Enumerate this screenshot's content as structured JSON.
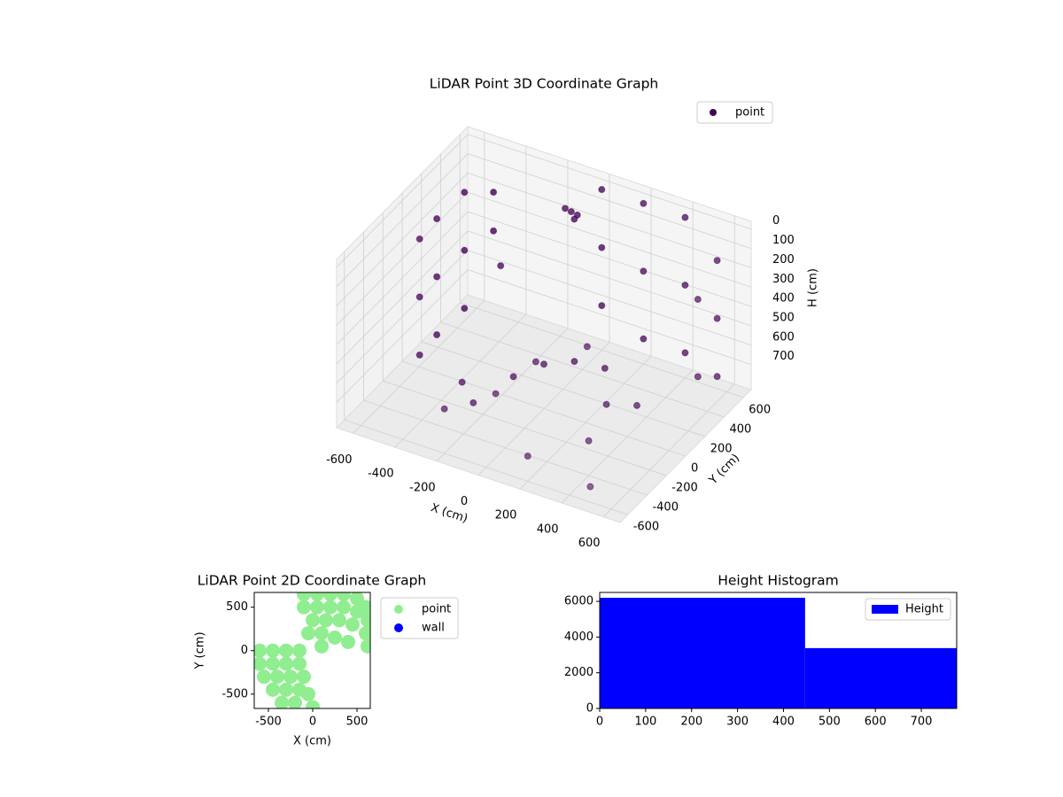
{
  "chart_data": [
    {
      "type": "scatter3d",
      "title": "LiDAR Point 3D Coordinate Graph",
      "xlabel": "X (cm)",
      "ylabel": "Y (cm)",
      "hlabel": "H (cm)",
      "xlim": [
        -680,
        680
      ],
      "ylim": [
        -680,
        680
      ],
      "hlim": [
        -40,
        830
      ],
      "h_inverted": true,
      "xticks": [
        -600,
        -400,
        -200,
        0,
        200,
        400,
        600
      ],
      "yticks": [
        -600,
        -400,
        -200,
        0,
        200,
        400,
        600
      ],
      "hticks": [
        0,
        100,
        200,
        300,
        400,
        500,
        600,
        700
      ],
      "legend": "upper right",
      "series": [
        {
          "name": "point",
          "color": "#440154",
          "x": [
            -550,
            -550,
            -550,
            -560,
            -560,
            -560,
            -520,
            -520,
            -520,
            -450,
            -450,
            0,
            0,
            0,
            200,
            200,
            200,
            400,
            400,
            400,
            600,
            600,
            600,
            600,
            600,
            -300,
            -200,
            -100,
            0,
            100,
            200,
            300,
            400,
            -100,
            -80,
            -120,
            -90,
            -200,
            0,
            200,
            400,
            100,
            -300,
            300,
            500
          ],
          "y": [
            -100,
            -100,
            -100,
            100,
            100,
            100,
            300,
            300,
            300,
            450,
            450,
            600,
            600,
            600,
            600,
            600,
            600,
            600,
            600,
            600,
            500,
            500,
            500,
            300,
            300,
            -200,
            -300,
            -100,
            0,
            100,
            200,
            0,
            100,
            500,
            520,
            480,
            510,
            -600,
            -500,
            -600,
            -400,
            -300,
            200,
            -200,
            -600
          ],
          "h": [
            100,
            400,
            700,
            100,
            400,
            700,
            50,
            350,
            650,
            100,
            300,
            0,
            300,
            600,
            0,
            350,
            700,
            0,
            350,
            700,
            100,
            400,
            700,
            200,
            600,
            700,
            720,
            650,
            600,
            600,
            650,
            700,
            720,
            100,
            120,
            80,
            140,
            600,
            500,
            700,
            650,
            400,
            300,
            300,
            750
          ]
        }
      ]
    },
    {
      "type": "scatter",
      "title": "LiDAR Point 2D Coordinate Graph",
      "xlabel": "X (cm)",
      "ylabel": "Y (cm)",
      "xlim": [
        -660,
        650
      ],
      "ylim": [
        -665,
        670
      ],
      "xticks": [
        -500,
        0,
        500
      ],
      "yticks": [
        -500,
        0,
        500
      ],
      "legend": "outside upper right",
      "series": [
        {
          "name": "point",
          "color": "#90ee90",
          "x": [
            -100,
            50,
            200,
            350,
            500,
            600,
            -100,
            50,
            200,
            350,
            500,
            620,
            0,
            150,
            300,
            450,
            600,
            620,
            -50,
            100,
            250,
            400,
            100,
            -600,
            -450,
            -300,
            -150,
            -600,
            -450,
            -300,
            -150,
            -550,
            -400,
            -250,
            -100,
            -450,
            -300,
            -150,
            -350,
            -200,
            0,
            -50
          ],
          "y": [
            650,
            650,
            650,
            650,
            600,
            500,
            500,
            500,
            500,
            500,
            450,
            350,
            350,
            350,
            350,
            300,
            200,
            50,
            200,
            200,
            150,
            100,
            50,
            0,
            0,
            0,
            0,
            -150,
            -150,
            -150,
            -150,
            -300,
            -300,
            -300,
            -300,
            -450,
            -450,
            -450,
            -600,
            -600,
            -650,
            -500
          ]
        },
        {
          "name": "wall",
          "color": "#0000ff",
          "x": [],
          "y": []
        }
      ]
    },
    {
      "type": "histogram",
      "title": "Height Histogram",
      "label": "Height",
      "color": "#0000ff",
      "bins": [
        0,
        447,
        777
      ],
      "counts": [
        6200,
        3380
      ],
      "xlim": [
        0,
        777
      ],
      "ylim": [
        0,
        6500
      ],
      "xticks": [
        0,
        100,
        200,
        300,
        400,
        500,
        600,
        700
      ],
      "yticks": [
        0,
        2000,
        4000,
        6000
      ],
      "legend": "upper right"
    }
  ]
}
